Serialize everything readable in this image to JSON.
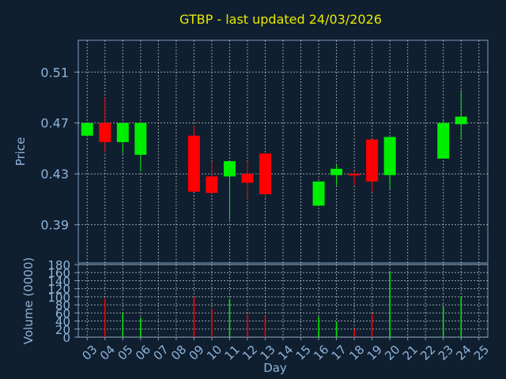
{
  "chart_data": [
    {
      "type": "candlestick",
      "title": "GTBP - last updated 24/03/2026",
      "ylabel": "Price",
      "ylim": [
        0.36,
        0.535
      ],
      "yticks": [
        "0.51",
        "0.47",
        "0.43",
        "0.39"
      ],
      "ytick_values": [
        0.51,
        0.47,
        0.43,
        0.39
      ],
      "grid": true,
      "candles": [
        {
          "day": "03",
          "open": 0.46,
          "close": 0.47,
          "high": 0.47,
          "low": 0.46
        },
        {
          "day": "04",
          "open": 0.47,
          "close": 0.455,
          "high": 0.49,
          "low": 0.447
        },
        {
          "day": "05",
          "open": 0.455,
          "close": 0.47,
          "high": 0.47,
          "low": 0.446
        },
        {
          "day": "06",
          "open": 0.445,
          "close": 0.47,
          "high": 0.47,
          "low": 0.432
        },
        {
          "day": "09",
          "open": 0.46,
          "close": 0.416,
          "high": 0.468,
          "low": 0.416
        },
        {
          "day": "10",
          "open": 0.428,
          "close": 0.415,
          "high": 0.44,
          "low": 0.415
        },
        {
          "day": "11",
          "open": 0.428,
          "close": 0.44,
          "high": 0.44,
          "low": 0.394
        },
        {
          "day": "12",
          "open": 0.43,
          "close": 0.423,
          "high": 0.44,
          "low": 0.41
        },
        {
          "day": "13",
          "open": 0.446,
          "close": 0.414,
          "high": 0.446,
          "low": 0.411
        },
        {
          "day": "16",
          "open": 0.405,
          "close": 0.424,
          "high": 0.424,
          "low": 0.405
        },
        {
          "day": "17",
          "open": 0.429,
          "close": 0.434,
          "high": 0.437,
          "low": 0.421
        },
        {
          "day": "18",
          "open": 0.43,
          "close": 0.429,
          "high": 0.432,
          "low": 0.421
        },
        {
          "day": "19",
          "open": 0.457,
          "close": 0.424,
          "high": 0.457,
          "low": 0.416
        },
        {
          "day": "20",
          "open": 0.429,
          "close": 0.459,
          "high": 0.459,
          "low": 0.418
        },
        {
          "day": "23",
          "open": 0.442,
          "close": 0.47,
          "high": 0.472,
          "low": 0.442
        },
        {
          "day": "24",
          "open": 0.469,
          "close": 0.475,
          "high": 0.496,
          "low": 0.457
        }
      ],
      "up_color": "#00ee00",
      "down_color": "#ff0000"
    },
    {
      "type": "bar",
      "ylabel": "Volume (0000)",
      "xlabel": "Day",
      "ylim": [
        0,
        180
      ],
      "yticks": [
        "180",
        "160",
        "140",
        "120",
        "100",
        "80",
        "60",
        "40",
        "20",
        "0"
      ],
      "ytick_values": [
        180,
        160,
        140,
        120,
        100,
        80,
        60,
        40,
        20,
        0
      ],
      "categories": [
        "03",
        "04",
        "05",
        "06",
        "07",
        "08",
        "09",
        "10",
        "11",
        "12",
        "13",
        "14",
        "15",
        "16",
        "17",
        "18",
        "19",
        "20",
        "21",
        "22",
        "23",
        "24",
        "25"
      ],
      "volumes": [
        {
          "day": "04",
          "value": 95,
          "dir": "down"
        },
        {
          "day": "05",
          "value": 60,
          "dir": "up"
        },
        {
          "day": "06",
          "value": 48,
          "dir": "up"
        },
        {
          "day": "09",
          "value": 100,
          "dir": "down"
        },
        {
          "day": "10",
          "value": 70,
          "dir": "down"
        },
        {
          "day": "11",
          "value": 95,
          "dir": "up"
        },
        {
          "day": "12",
          "value": 57,
          "dir": "down"
        },
        {
          "day": "13",
          "value": 52,
          "dir": "down"
        },
        {
          "day": "16",
          "value": 50,
          "dir": "up"
        },
        {
          "day": "17",
          "value": 38,
          "dir": "up"
        },
        {
          "day": "18",
          "value": 20,
          "dir": "down"
        },
        {
          "day": "19",
          "value": 58,
          "dir": "down"
        },
        {
          "day": "20",
          "value": 163,
          "dir": "up"
        },
        {
          "day": "23",
          "value": 75,
          "dir": "up"
        },
        {
          "day": "24",
          "value": 100,
          "dir": "up"
        }
      ]
    }
  ]
}
